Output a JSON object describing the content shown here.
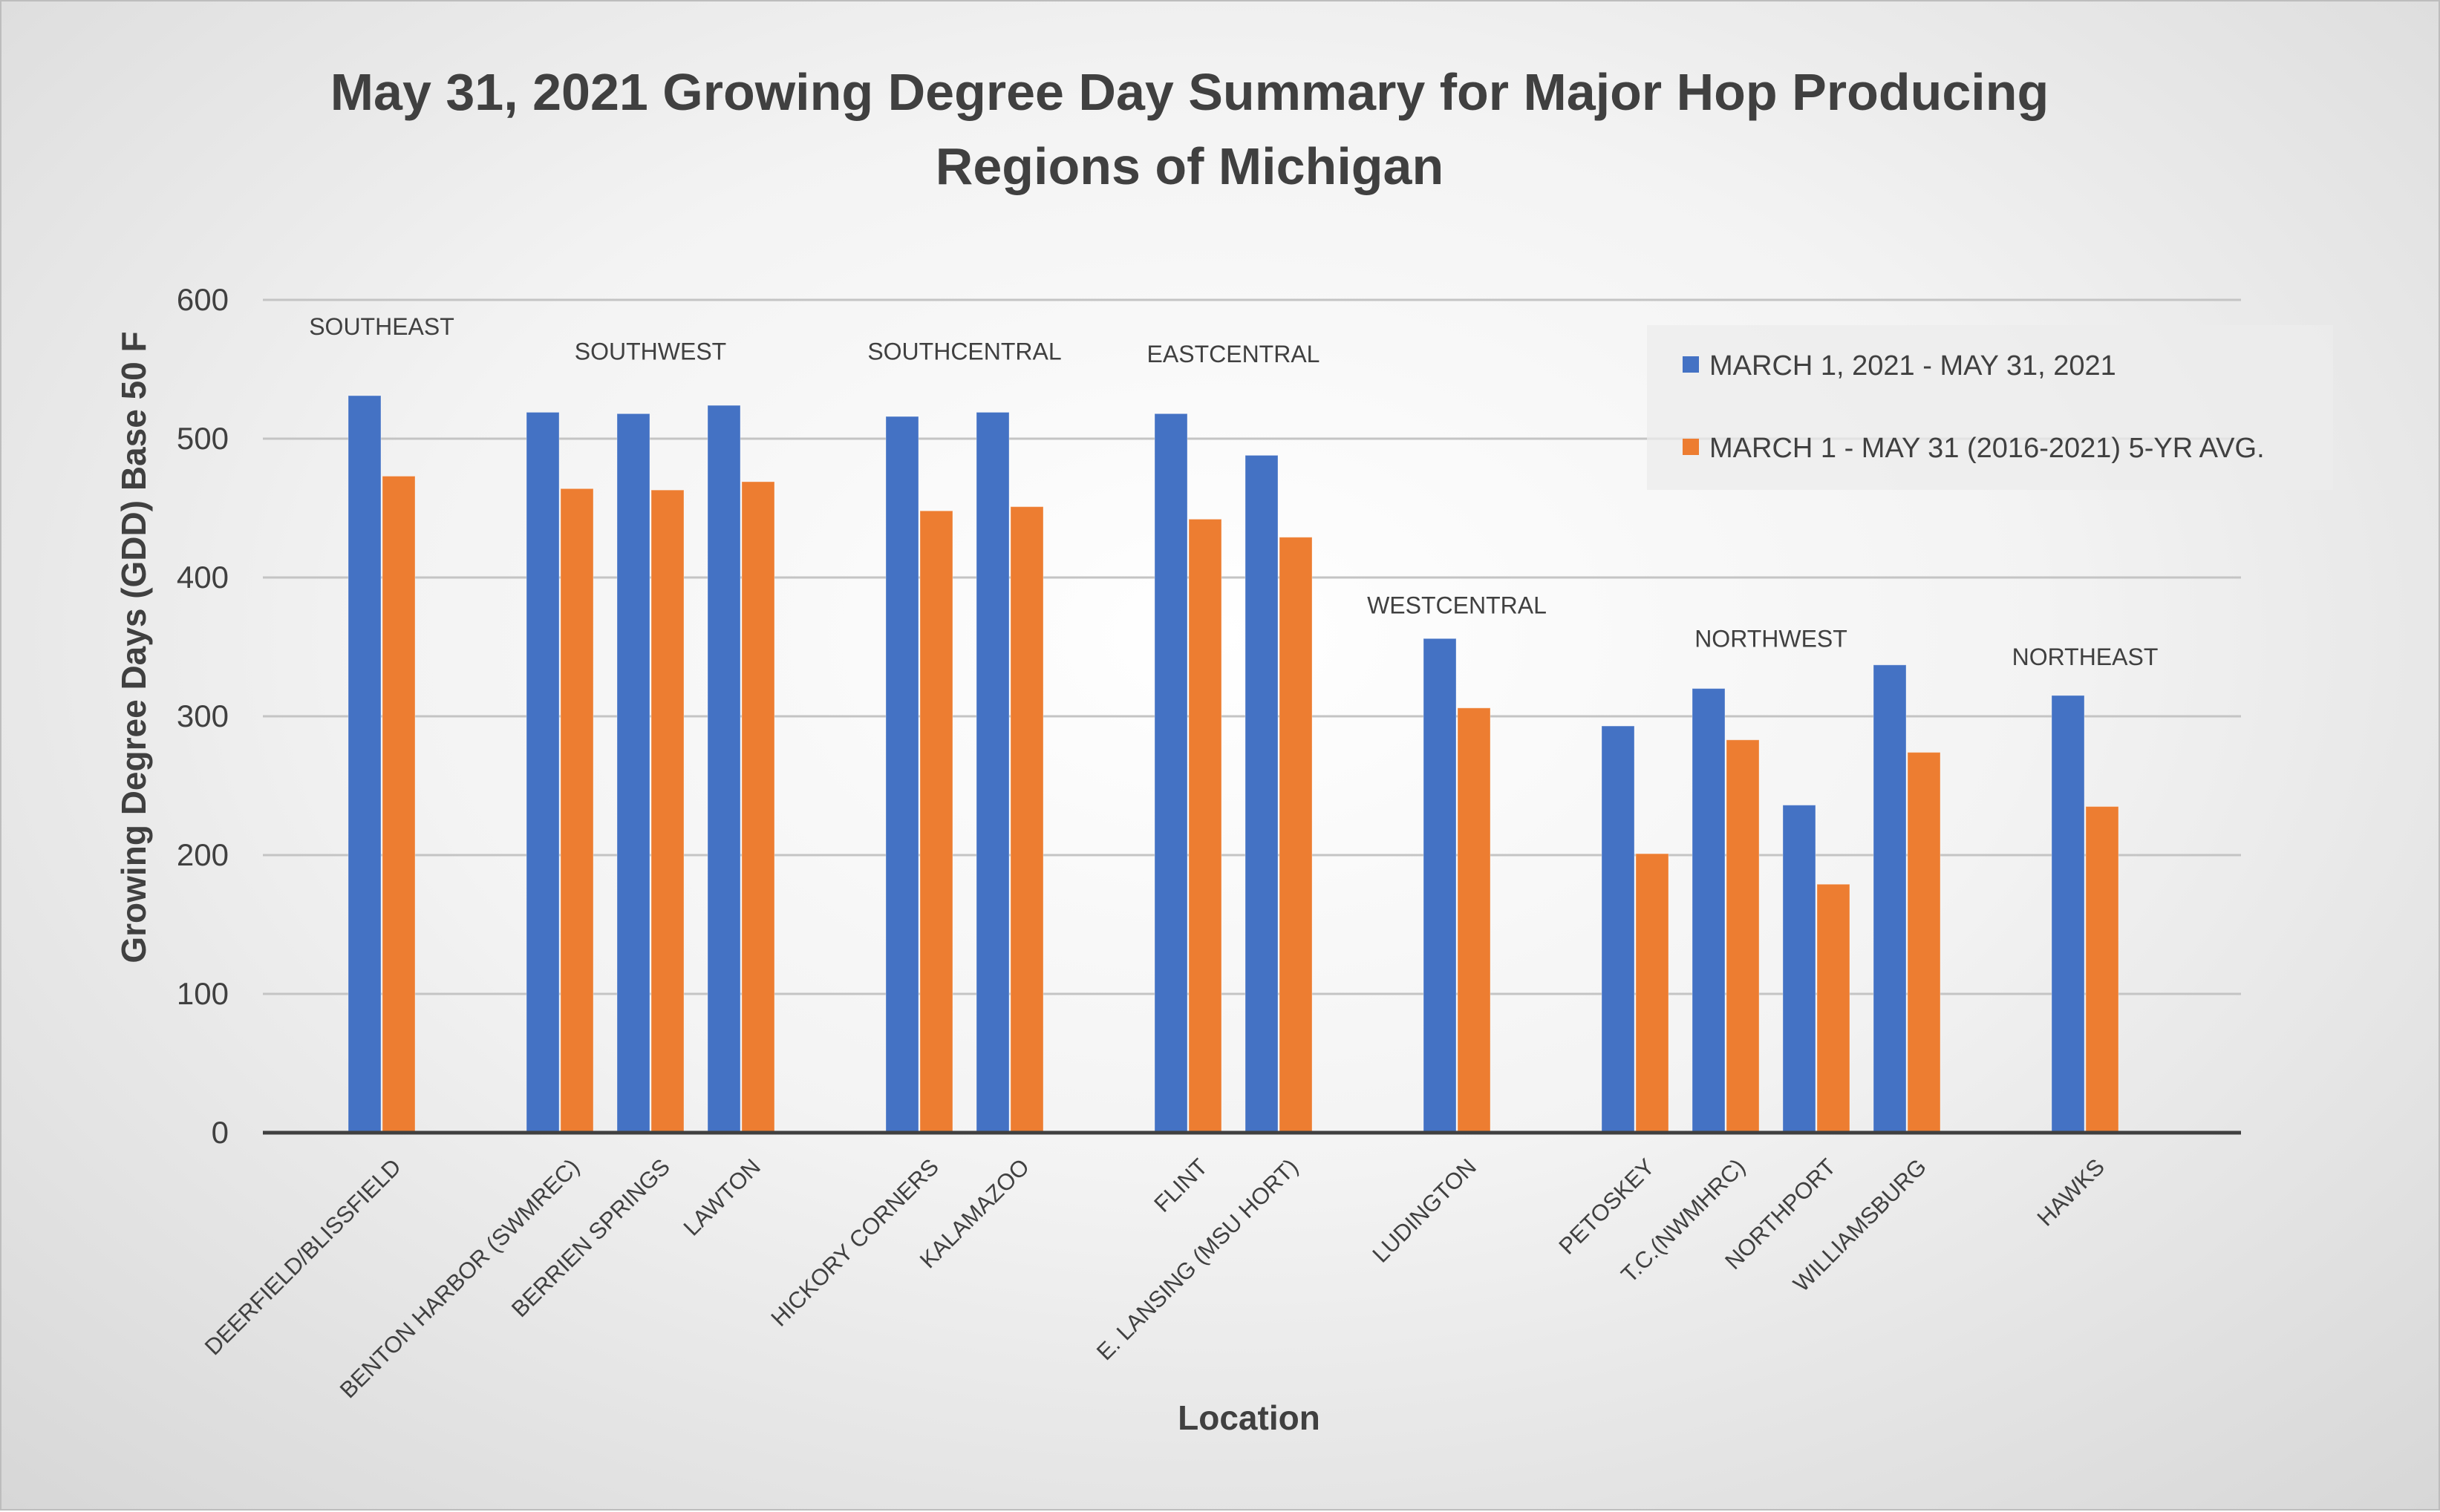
{
  "chart_data": {
    "type": "bar",
    "title_lines": [
      "May 31, 2021 Growing Degree Day Summary for Major Hop Producing",
      "Regions of Michigan"
    ],
    "xlabel": "Location",
    "ylabel": "Growing Degree Days (GDD) Base 50 F",
    "ylim": [
      0,
      600
    ],
    "yticks": [
      0,
      100,
      200,
      300,
      400,
      500,
      600
    ],
    "grid": true,
    "legend_position": "top-right",
    "categories": [
      "DEERFIELD/BLISSFIELD",
      "BENTON HARBOR (SWMREC)",
      "BERRIEN SPRINGS",
      "LAWTON",
      "HICKORY CORNERS",
      "KALAMAZOO",
      "FLINT",
      "E. LANSING (MSU HORT)",
      "LUDINGTON",
      "PETOSKEY",
      "T.C.(NWMHRC)",
      "NORTHPORT",
      "WILLIAMSBURG",
      "HAWKS"
    ],
    "series": [
      {
        "name": "MARCH 1, 2021 - MAY 31, 2021",
        "color": "#4472c4",
        "values": [
          531,
          519,
          518,
          524,
          516,
          519,
          518,
          488,
          356,
          293,
          320,
          236,
          337,
          315
        ]
      },
      {
        "name": "MARCH 1 - MAY 31 (2016-2021) 5-YR AVG.",
        "color": "#ed7d31",
        "values": [
          473,
          464,
          463,
          469,
          448,
          451,
          442,
          429,
          306,
          201,
          283,
          179,
          274,
          235
        ]
      }
    ],
    "region_annotations": [
      {
        "label": "SOUTHEAST",
        "category_index": 0,
        "y": 575
      },
      {
        "label": "SOUTHWEST",
        "category_index": 2,
        "y": 557
      },
      {
        "label": "SOUTHCENTRAL",
        "category_index": 4.5,
        "y": 557
      },
      {
        "label": "EASTCENTRAL",
        "category_index": 6.5,
        "y": 555
      },
      {
        "label": "WESTCENTRAL",
        "category_index": 8,
        "y": 374
      },
      {
        "label": "NORTHWEST",
        "category_index": 10.5,
        "y": 350
      },
      {
        "label": "NORTHEAST",
        "category_index": 13,
        "y": 337
      }
    ]
  }
}
